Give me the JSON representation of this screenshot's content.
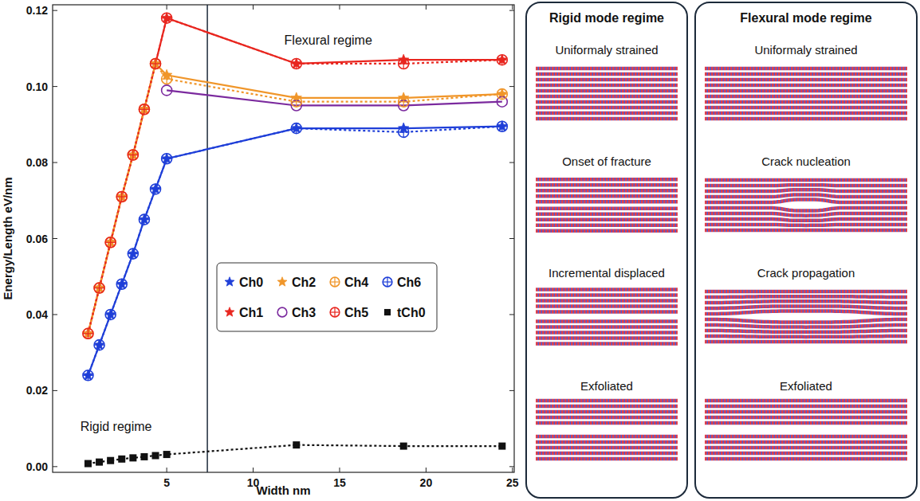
{
  "chart_data": {
    "type": "line",
    "x_label": "Width nm",
    "y_label": "Energy/Length eV/nm",
    "x": [
      0.45,
      1.1,
      1.75,
      2.4,
      3.05,
      3.7,
      4.35,
      5.0,
      12.5,
      18.7,
      24.4
    ],
    "xlim": [
      -1.6,
      25.1
    ],
    "xticks": [
      5,
      10,
      15,
      20,
      25
    ],
    "ylim": [
      -0.0015,
      0.1215
    ],
    "yticks": [
      {
        "value": 0,
        "label": "0.00"
      },
      {
        "value": 0.02,
        "label": "0.02"
      },
      {
        "value": 0.04,
        "label": "0.04"
      },
      {
        "value": 0.06,
        "label": "0.06"
      },
      {
        "value": 0.08,
        "label": "0.08"
      },
      {
        "value": 0.1,
        "label": "0.10"
      },
      {
        "value": 0.12,
        "label": "0.12"
      }
    ],
    "grid": false,
    "legend": "right",
    "boundary_x": 7.35,
    "annotations": [
      {
        "text": "Flexural regime",
        "x": 11.8,
        "y": 0.111
      },
      {
        "text": "Rigid regime",
        "x": 0.0,
        "y": 0.0095
      }
    ],
    "series": [
      {
        "name": "Ch0",
        "color": "#1f3fd8",
        "marker": "star",
        "line_style": "solid",
        "values": [
          0.024,
          0.032,
          0.04,
          0.048,
          0.056,
          0.065,
          0.073,
          0.081,
          0.089,
          0.089,
          0.0895
        ]
      },
      {
        "name": "Ch1",
        "color": "#e8261f",
        "marker": "star",
        "line_style": "solid",
        "values": [
          0.035,
          0.047,
          0.059,
          0.071,
          0.082,
          0.094,
          0.106,
          0.118,
          0.106,
          0.107,
          0.107
        ]
      },
      {
        "name": "Ch2",
        "color": "#f0962a",
        "marker": "star",
        "line_style": "solid",
        "values": [
          0.035,
          0.047,
          0.059,
          0.071,
          0.082,
          0.094,
          0.106,
          0.103,
          0.097,
          0.097,
          0.098
        ]
      },
      {
        "name": "Ch3",
        "color": "#7b2a9e",
        "marker": "circle",
        "line_style": "solid",
        "values": [
          null,
          null,
          null,
          null,
          null,
          null,
          null,
          0.099,
          0.095,
          0.095,
          0.096
        ]
      },
      {
        "name": "Ch4",
        "color": "#f0962a",
        "marker": "circle-cross",
        "line_style": "dotted",
        "values": [
          0.035,
          0.047,
          0.059,
          0.071,
          0.082,
          0.094,
          0.106,
          0.102,
          0.096,
          0.096,
          0.098
        ]
      },
      {
        "name": "Ch5",
        "color": "#e8261f",
        "marker": "circle-cross",
        "line_style": "dotted",
        "values": [
          0.035,
          0.047,
          0.059,
          0.071,
          0.082,
          0.094,
          0.106,
          0.118,
          0.106,
          0.106,
          0.107
        ]
      },
      {
        "name": "Ch6",
        "color": "#1f3fd8",
        "marker": "circle-cross",
        "line_style": "dotted",
        "values": [
          0.024,
          0.032,
          0.04,
          0.048,
          0.056,
          0.065,
          0.073,
          0.081,
          0.089,
          0.088,
          0.0895
        ]
      },
      {
        "name": "tCh0",
        "color": "#111111",
        "marker": "square",
        "line_style": "dotted",
        "values": [
          0.0008,
          0.0012,
          0.0016,
          0.002,
          0.0023,
          0.0026,
          0.0029,
          0.0032,
          0.0057,
          0.0054,
          0.0054
        ]
      }
    ]
  },
  "panels": [
    {
      "title": "Rigid mode regime",
      "stages": [
        "Uniformaly strained",
        "Onset of fracture",
        "Incremental displaced",
        "Exfoliated"
      ]
    },
    {
      "title": "Flexural mode regime",
      "stages": [
        "Uniformaly strained",
        "Crack nucleation",
        "Crack propagation",
        "Exfoliated"
      ]
    }
  ]
}
